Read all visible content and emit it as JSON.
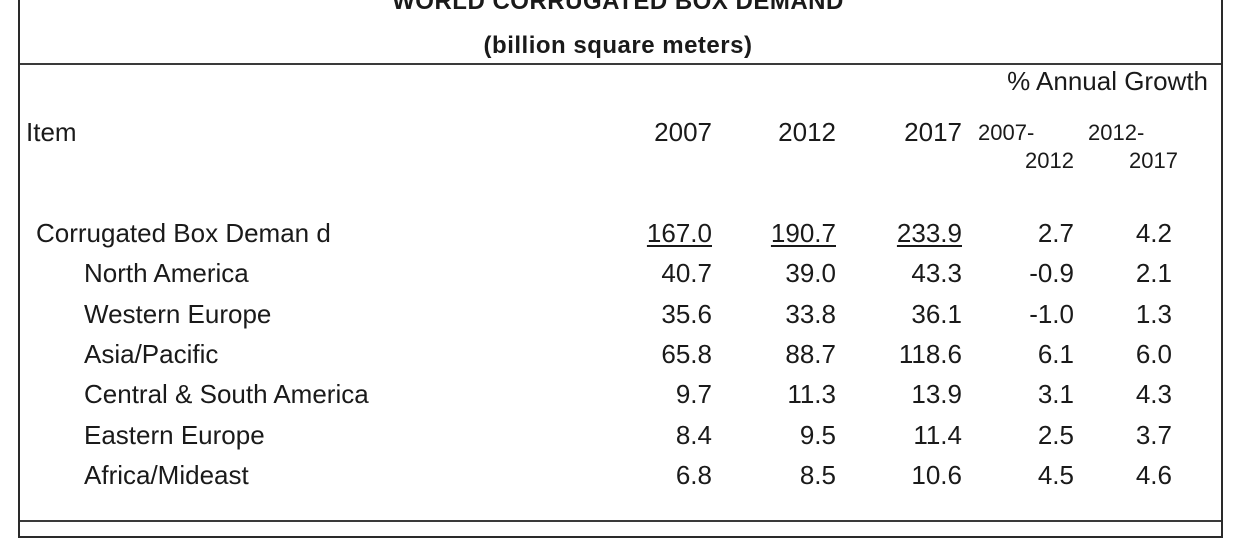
{
  "title": {
    "line1": "WORLD CORRUGATED BOX DEMAND",
    "line2": "(billion square meters)"
  },
  "header": {
    "growth_label": "% Annual Growth",
    "item_label": "Item",
    "col_2007": "2007",
    "col_2012": "2012",
    "col_2017": "2017",
    "growth_col1_a": "2007-",
    "growth_col1_b": "2012",
    "growth_col2_a": "2012-",
    "growth_col2_b": "2017"
  },
  "rows": [
    {
      "label": "Corrugated Box Deman d",
      "v2007": "167.0",
      "v2012": "190.7",
      "v2017": "233.9",
      "g1": "2.7",
      "g2": "4.2",
      "total": true
    },
    {
      "label": "North America",
      "v2007": "40.7",
      "v2012": "39.0",
      "v2017": "43.3",
      "g1": "-0.9",
      "g2": "2.1"
    },
    {
      "label": "Western Europe",
      "v2007": "35.6",
      "v2012": "33.8",
      "v2017": "36.1",
      "g1": "-1.0",
      "g2": "1.3"
    },
    {
      "label": "Asia/Pacific",
      "v2007": "65.8",
      "v2012": "88.7",
      "v2017": "118.6",
      "g1": "6.1",
      "g2": "6.0"
    },
    {
      "label": "Central & South America",
      "v2007": "9.7",
      "v2012": "11.3",
      "v2017": "13.9",
      "g1": "3.1",
      "g2": "4.3"
    },
    {
      "label": "Eastern Europe",
      "v2007": "8.4",
      "v2012": "9.5",
      "v2017": "11.4",
      "g1": "2.5",
      "g2": "3.7"
    },
    {
      "label": "Africa/Mideast",
      "v2007": "6.8",
      "v2012": "8.5",
      "v2017": "10.6",
      "g1": "4.5",
      "g2": "4.6"
    }
  ]
}
